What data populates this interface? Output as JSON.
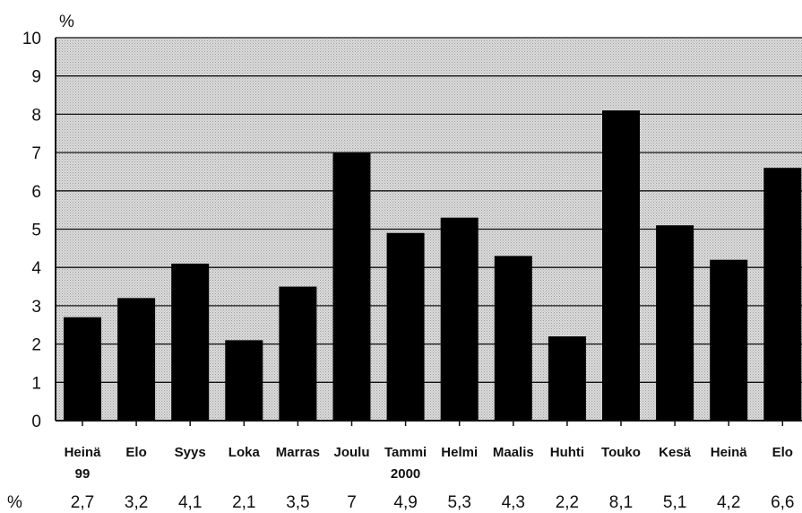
{
  "chart_data": {
    "type": "bar",
    "title": "",
    "xlabel": "",
    "ylabel": "%",
    "ylim": [
      0,
      10
    ],
    "yticks": [
      0,
      1,
      2,
      3,
      4,
      5,
      6,
      7,
      8,
      9,
      10
    ],
    "grid": true,
    "categories": [
      {
        "label": "Heinä",
        "sub": "99"
      },
      {
        "label": "Elo",
        "sub": ""
      },
      {
        "label": "Syys",
        "sub": ""
      },
      {
        "label": "Loka",
        "sub": ""
      },
      {
        "label": "Marras",
        "sub": ""
      },
      {
        "label": "Joulu",
        "sub": ""
      },
      {
        "label": "Tammi",
        "sub": "2000"
      },
      {
        "label": "Helmi",
        "sub": ""
      },
      {
        "label": "Maalis",
        "sub": ""
      },
      {
        "label": "Huhti",
        "sub": ""
      },
      {
        "label": "Touko",
        "sub": ""
      },
      {
        "label": "Kesä",
        "sub": ""
      },
      {
        "label": "Heinä",
        "sub": ""
      },
      {
        "label": "Elo",
        "sub": ""
      }
    ],
    "values": [
      2.7,
      3.2,
      4.1,
      2.1,
      3.5,
      7,
      4.9,
      5.3,
      4.3,
      2.2,
      8.1,
      5.1,
      4.2,
      6.6
    ],
    "value_labels": [
      "2,7",
      "3,2",
      "4,1",
      "2,1",
      "3,5",
      "7",
      "4,9",
      "5,3",
      "4,3",
      "2,2",
      "8,1",
      "5,1",
      "4,2",
      "6,6"
    ],
    "value_row_label": "%",
    "bar_color": "#000000",
    "plot_background": "#cfcfcf"
  }
}
